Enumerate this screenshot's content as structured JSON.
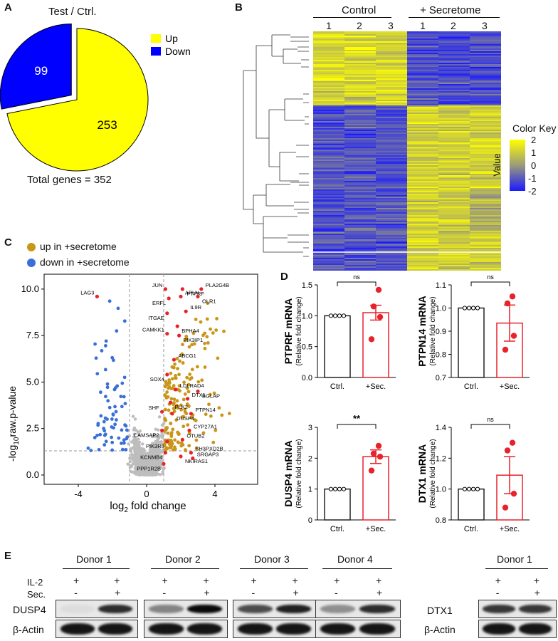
{
  "figure": {
    "panel_a": {
      "label": "A",
      "title": "Test / Ctrl.",
      "total_text": "Total genes = 352",
      "colors": {
        "up": "#ffff00",
        "down": "#0000ff"
      },
      "chart_data": {
        "type": "pie",
        "title": "Test / Ctrl.",
        "labels": [
          "Up",
          "Down"
        ],
        "values": [
          253,
          99
        ],
        "legend": "top-right"
      }
    },
    "panel_b": {
      "label": "B",
      "group_control": "Control",
      "group_secretome": "+ Secretome",
      "columns": [
        "1",
        "2",
        "3",
        "1",
        "2",
        "3"
      ],
      "color_key_title": "Color Key",
      "value_label": "Value",
      "colorbar_ticks": [
        "2",
        "1",
        "0",
        "-1",
        "-2"
      ],
      "colors": {
        "low": "#1a1aff",
        "mid": "#9a9a7a",
        "high": "#ffff00"
      }
    },
    "panel_c": {
      "label": "C",
      "legend_up": "up in +secretome",
      "legend_down": "down in +secretome",
      "colors": {
        "up": "#c9961a",
        "down": "#3a6fd8",
        "ns": "#bdbdbd",
        "highlight": "#e8222a"
      },
      "xlabel_main": "log",
      "xlabel_sub": "2",
      "xlabel_rest": " fold change",
      "ylabel_pre": "-log",
      "ylabel_sub": "10",
      "ylabel_rest": "raw.p-value",
      "chart_data": {
        "type": "scatter",
        "xlabel": "log2 fold change",
        "ylabel": "-log10raw.p-value",
        "xlim": [
          -6,
          6.5
        ],
        "ylim": [
          -0.5,
          10.8
        ],
        "xticks": [
          -4,
          0,
          4
        ],
        "yticks": [
          0.0,
          2.5,
          5.0,
          7.5,
          10.0
        ],
        "threshold_x": [
          -1,
          1
        ],
        "threshold_y": 1.3,
        "labeled_genes": [
          {
            "gene": "JUN",
            "x": 1.1,
            "y": 10.0
          },
          {
            "gene": "PTPRF",
            "x": 2.1,
            "y": 10.0
          },
          {
            "gene": "PLA2G4B",
            "x": 3.2,
            "y": 10.0
          },
          {
            "gene": "ERFL",
            "x": 1.3,
            "y": 9.5
          },
          {
            "gene": "APLN",
            "x": 2.0,
            "y": 9.6
          },
          {
            "gene": "OLR1",
            "x": 3.0,
            "y": 9.6
          },
          {
            "gene": "LAG3",
            "x": -2.9,
            "y": 9.6
          },
          {
            "gene": "ITGAE",
            "x": 1.2,
            "y": 8.7
          },
          {
            "gene": "IL9R",
            "x": 2.3,
            "y": 8.8
          },
          {
            "gene": "BPHA4",
            "x": 1.8,
            "y": 8.0
          },
          {
            "gene": "CAMKK1",
            "x": 1.2,
            "y": 7.6
          },
          {
            "gene": "PIK3IP1",
            "x": 1.9,
            "y": 7.5
          },
          {
            "gene": "ABCG1",
            "x": 1.6,
            "y": 6.2
          },
          {
            "gene": "SOX4",
            "x": 1.2,
            "y": 5.4
          },
          {
            "gene": "LDLRAD4",
            "x": 1.7,
            "y": 4.6
          },
          {
            "gene": "BGLAP",
            "x": 3.0,
            "y": 4.5
          },
          {
            "gene": "DTX1",
            "x": 2.4,
            "y": 4.1
          },
          {
            "gene": "PLK2",
            "x": 1.4,
            "y": 3.9
          },
          {
            "gene": "SHF",
            "x": 0.9,
            "y": 3.4
          },
          {
            "gene": "DUSP4",
            "x": 1.5,
            "y": 3.3
          },
          {
            "gene": "PTPN14",
            "x": 2.6,
            "y": 3.3
          },
          {
            "gene": "CAMSAP2",
            "x": 0.9,
            "y": 2.4
          },
          {
            "gene": "CYP27A1",
            "x": 2.5,
            "y": 2.4
          },
          {
            "gene": "PIK3R6",
            "x": 1.2,
            "y": 1.8
          },
          {
            "gene": "OTUB2",
            "x": 2.1,
            "y": 1.9
          },
          {
            "gene": "KCNMB4",
            "x": 1.1,
            "y": 1.2
          },
          {
            "gene": "SH3PXD2B",
            "x": 2.6,
            "y": 1.2
          },
          {
            "gene": "NKIRAS1",
            "x": 2.0,
            "y": 1.0
          },
          {
            "gene": "SRGAP3",
            "x": 2.7,
            "y": 0.9
          },
          {
            "gene": "PPP1R2B",
            "x": 1.0,
            "y": 0.6
          }
        ]
      }
    },
    "panel_d": {
      "label": "D",
      "yaxis_sub": "(Relative fold change)",
      "bar_colors": {
        "ctrl": "#222222",
        "sec": "#e8222a"
      },
      "chart_data": [
        {
          "type": "bar",
          "title": "PTPRF mRNA",
          "ylabel": "PTPRF mRNA",
          "categories": [
            "Ctrl.",
            "+Sec."
          ],
          "values": [
            1.0,
            1.05
          ],
          "errors": [
            0.0,
            0.12
          ],
          "points_sec": [
            0.62,
            0.98,
            1.15,
            1.42
          ],
          "ylim": [
            0.0,
            1.5
          ],
          "yticks": [
            "0.0",
            "0.5",
            "1.0",
            "1.5"
          ],
          "significance": "ns"
        },
        {
          "type": "bar",
          "title": "PTPN14 mRNA",
          "ylabel": "PTPN14 mRNA",
          "categories": [
            "Ctrl.",
            "+Sec."
          ],
          "values": [
            1.0,
            0.935
          ],
          "errors": [
            0.0,
            0.078
          ],
          "points_sec": [
            0.82,
            0.88,
            1.02,
            1.05
          ],
          "ylim": [
            0.7,
            1.1
          ],
          "yticks": [
            "0.7",
            "0.8",
            "0.9",
            "1.0",
            "1.1"
          ],
          "significance": "ns"
        },
        {
          "type": "bar",
          "title": "DUSP4 mRNA",
          "ylabel": "DUSP4 mRNA",
          "categories": [
            "Ctrl.",
            "+Sec."
          ],
          "values": [
            1.0,
            2.05
          ],
          "errors": [
            0.0,
            0.22
          ],
          "points_sec": [
            1.6,
            2.05,
            2.15,
            2.4
          ],
          "ylim": [
            0,
            3
          ],
          "yticks": [
            "0",
            "1",
            "2",
            "3"
          ],
          "significance": "**"
        },
        {
          "type": "bar",
          "title": "DTX1 mRNA",
          "ylabel": "DTX1 mRNA",
          "categories": [
            "Ctrl.",
            "+Sec."
          ],
          "values": [
            1.0,
            1.09
          ],
          "errors": [
            0.0,
            0.12
          ],
          "points_sec": [
            0.88,
            0.97,
            1.25,
            1.3
          ],
          "ylim": [
            0.8,
            1.4
          ],
          "yticks": [
            "0.8",
            "1.0",
            "1.2",
            "1.4"
          ],
          "significance": "ns"
        }
      ]
    },
    "panel_e": {
      "label": "E",
      "row_il2": "IL-2",
      "row_sec": "Sec.",
      "row_dusp4": "DUSP4",
      "row_actin": "β-Actin",
      "row_dtx1": "DTX1",
      "donors": [
        "Donor 1",
        "Donor 2",
        "Donor 3",
        "Donor 4",
        "Donor 1"
      ],
      "il2_marks": [
        "+",
        "+"
      ],
      "sec_marks": [
        "-",
        "+"
      ]
    }
  }
}
